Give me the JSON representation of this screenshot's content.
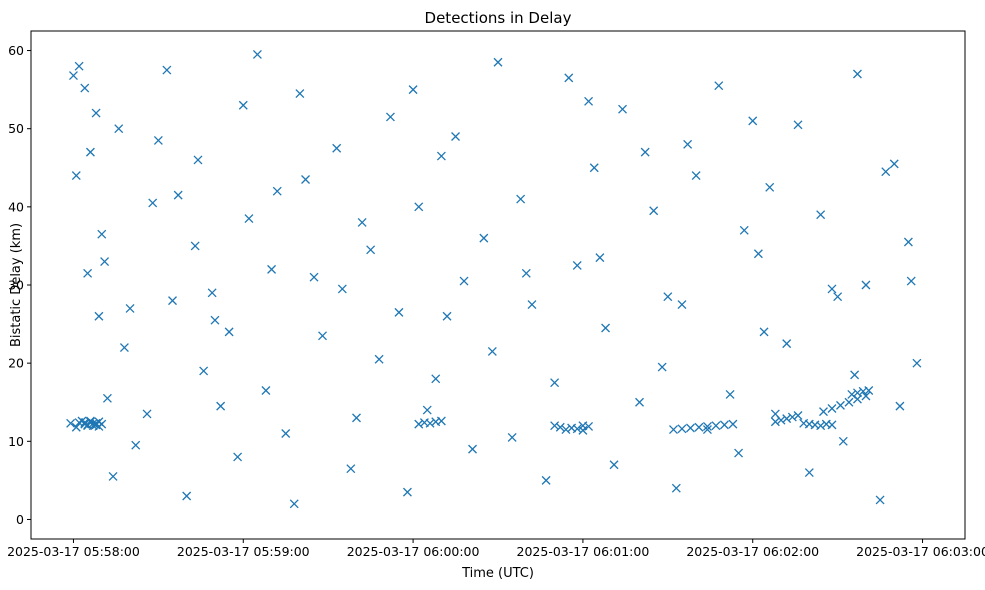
{
  "chart_data": {
    "type": "scatter",
    "title": "Detections in Delay",
    "xlabel": "Time (UTC)",
    "ylabel": "Bistatic Delay (km)",
    "marker": "x",
    "color": "#1f77b4",
    "grid": false,
    "legend": "none",
    "x_tick_labels": [
      "2025-03-17 05:58:00",
      "2025-03-17 05:59:00",
      "2025-03-17 06:00:00",
      "2025-03-17 06:01:00",
      "2025-03-17 06:02:00",
      "2025-03-17 06:03:00"
    ],
    "x_tick_values": [
      "05:58:00",
      "05:59:00",
      "06:00:00",
      "06:01:00",
      "06:02:00",
      "06:03:00"
    ],
    "y_ticks": [
      0,
      10,
      20,
      30,
      40,
      50,
      60
    ],
    "xlim": [
      "05:57:45",
      "06:03:15"
    ],
    "ylim": [
      -2.5,
      62.5
    ],
    "series": [
      {
        "x": [
          "05:57:59",
          "05:58:02",
          "05:58:04",
          "05:58:06",
          "05:58:08",
          "05:58:01",
          "05:58:03",
          "05:58:05",
          "05:58:07",
          "05:58:09",
          "05:58:00",
          "05:58:02",
          "05:58:04",
          "05:58:06",
          "05:58:08",
          "05:58:10",
          "05:58:01",
          "05:58:05",
          "05:58:09",
          "05:58:12",
          "05:58:30",
          "05:58:33",
          "05:58:37",
          "05:58:43",
          "05:58:49",
          "05:58:55",
          "05:59:05",
          "05:59:12",
          "05:59:20",
          "05:59:33",
          "05:59:45",
          "05:59:52",
          "06:00:02",
          "06:00:10",
          "06:00:18",
          "06:00:30",
          "06:00:42",
          "06:00:55",
          "06:01:04",
          "06:01:14",
          "06:01:25",
          "06:01:37",
          "06:01:48",
          "06:01:57",
          "06:02:06",
          "06:02:16",
          "06:02:28",
          "06:02:37",
          "06:02:47",
          "06:02:55",
          "05:58:14",
          "05:58:22",
          "05:58:40",
          "05:58:58",
          "05:59:18",
          "05:59:38",
          "05:59:58",
          "06:00:21",
          "06:00:47",
          "06:01:11",
          "06:01:33",
          "06:01:55",
          "06:02:20",
          "06:02:45",
          "05:58:18",
          "05:58:46",
          "05:59:08",
          "05:59:28",
          "05:59:48",
          "06:00:08",
          "06:00:28",
          "06:00:50",
          "06:01:08",
          "06:01:28",
          "06:01:52",
          "06:02:12",
          "06:02:36",
          "06:02:58",
          "05:58:26",
          "05:58:52",
          "05:59:15",
          "05:59:40",
          "06:00:05",
          "06:00:35",
          "06:01:00",
          "06:01:20",
          "06:01:44",
          "06:02:08",
          "06:02:32",
          "06:02:52",
          "05:58:11",
          "05:58:35",
          "05:59:02",
          "05:59:25",
          "05:59:55",
          "06:00:25",
          "06:00:58",
          "06:01:30",
          "06:02:02",
          "06:02:40",
          "05:58:16",
          "05:58:28",
          "05:58:44",
          "05:59:00",
          "05:59:22",
          "05:59:42",
          "06:00:00",
          "06:00:15",
          "06:00:38",
          "06:01:02",
          "06:01:22",
          "06:01:40",
          "06:02:00",
          "06:02:24",
          "06:02:50",
          "05:58:20",
          "05:58:50",
          "05:59:10",
          "05:59:35",
          "06:00:12",
          "06:00:40",
          "06:01:06",
          "06:01:35",
          "06:02:04",
          "06:02:30",
          "06:02:56"
        ],
        "y": [
          12.3,
          12.4,
          12.2,
          12.5,
          12.1,
          11.8,
          12.6,
          12.0,
          12.3,
          11.9,
          56.8,
          58.0,
          55.2,
          47.0,
          52.0,
          36.5,
          44.0,
          31.5,
          26.0,
          15.5,
          48.5,
          57.5,
          41.5,
          35.0,
          29.0,
          24.0,
          59.5,
          42.0,
          54.5,
          47.5,
          34.5,
          51.5,
          40.0,
          46.5,
          30.5,
          58.5,
          27.5,
          56.5,
          45.0,
          52.5,
          39.5,
          48.0,
          55.5,
          37.0,
          42.5,
          50.5,
          29.5,
          57.0,
          44.5,
          35.5,
          5.5,
          9.5,
          3.0,
          8.0,
          2.0,
          6.5,
          3.5,
          9.0,
          5.0,
          7.0,
          4.0,
          8.5,
          6.0,
          2.5,
          22.0,
          19.0,
          16.5,
          23.5,
          20.5,
          18.0,
          21.5,
          17.5,
          24.5,
          19.5,
          16.0,
          22.5,
          18.5,
          20.0,
          13.5,
          14.5,
          11.0,
          13.0,
          14.0,
          10.5,
          12.0,
          15.0,
          11.5,
          13.5,
          10.0,
          14.5,
          33.0,
          28.0,
          38.5,
          31.0,
          26.5,
          36.0,
          32.5,
          28.5,
          34.0,
          30.0,
          50.0,
          40.5,
          46.0,
          53.0,
          43.5,
          38.0,
          55.0,
          49.0,
          41.0,
          53.5,
          47.0,
          44.0,
          51.0,
          39.0,
          45.5,
          27.0,
          25.5,
          32.0,
          29.5,
          26.0,
          31.5,
          33.5,
          27.5,
          24.0,
          28.5,
          30.5
        ]
      },
      {
        "name": "",
        "x": [
          "05:58:04",
          "05:58:05",
          "05:58:06",
          "05:58:07",
          "05:58:08",
          "05:58:09",
          "05:58:10",
          "06:00:02",
          "06:00:04",
          "06:00:06",
          "06:00:08",
          "06:00:10",
          "06:00:50",
          "06:00:52",
          "06:00:54",
          "06:00:56",
          "06:00:58",
          "06:01:00",
          "06:01:02",
          "06:01:32",
          "06:01:35",
          "06:01:38",
          "06:01:41",
          "06:01:44",
          "06:01:47",
          "06:01:50",
          "06:01:53",
          "06:02:08",
          "06:02:10",
          "06:02:12",
          "06:02:14",
          "06:02:16",
          "06:02:25",
          "06:02:28",
          "06:02:31",
          "06:02:34",
          "06:02:37",
          "06:02:40",
          "06:02:18",
          "06:02:20",
          "06:02:22",
          "06:02:24",
          "06:02:26",
          "06:02:28",
          "06:02:35",
          "06:02:37",
          "06:02:39",
          "06:02:41"
        ],
        "y": [
          12.4,
          12.1,
          12.6,
          12.0,
          12.3,
          12.5,
          12.2,
          12.2,
          12.4,
          12.3,
          12.5,
          12.6,
          12.0,
          11.8,
          11.5,
          11.7,
          11.6,
          11.4,
          11.9,
          11.5,
          11.6,
          11.7,
          11.8,
          11.9,
          12.0,
          12.1,
          12.2,
          12.5,
          12.7,
          12.9,
          13.1,
          13.3,
          13.8,
          14.2,
          14.6,
          15.0,
          15.4,
          15.8,
          12.3,
          12.2,
          12.1,
          12.0,
          12.2,
          12.1,
          16.0,
          16.2,
          16.4,
          16.5
        ]
      }
    ]
  }
}
